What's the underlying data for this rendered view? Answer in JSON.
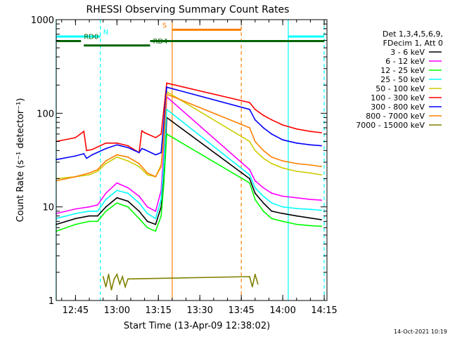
{
  "chart_data": {
    "type": "line",
    "title": "RHESSI Observing Summary Count Rates",
    "xlabel": "Start Time (13-Apr-09 12:38:02)",
    "ylabel": "Count Rate (s⁻¹ detector⁻¹)",
    "yscale": "log",
    "ylim": [
      1,
      1000
    ],
    "xlim": [
      "12:38:02",
      "14:16:00"
    ],
    "x_ticks": [
      "12:45",
      "13:00",
      "13:15",
      "13:30",
      "13:45",
      "14:00",
      "14:15"
    ],
    "y_ticks": [
      "1",
      "10",
      "100",
      "1000"
    ],
    "timestamp": "14-Oct-2021 10:19",
    "legend": {
      "placement": "right",
      "header": [
        "Det 1,3,4,5,6,9,",
        "FDecim 1, Att 0"
      ]
    },
    "series": [
      {
        "name": "3 - 6 keV",
        "color": "#000000",
        "x": [
          "12:38",
          "12:45",
          "12:50",
          "12:53",
          "12:56",
          "13:00",
          "13:04",
          "13:08",
          "13:11",
          "13:14",
          "13:16",
          "13:17",
          "13:18",
          "13:48",
          "13:50",
          "13:53",
          "13:56",
          "14:00",
          "14:05",
          "14:10",
          "14:14"
        ],
        "y": [
          6.5,
          7.5,
          8,
          8,
          10,
          12.5,
          11.5,
          9,
          7,
          6.5,
          10,
          20,
          90,
          20,
          14,
          11,
          9,
          8.5,
          8,
          7.6,
          7.3
        ]
      },
      {
        "name": "6 - 12 keV",
        "color": "#ff00ff",
        "x": [
          "12:38",
          "12:45",
          "12:50",
          "12:53",
          "12:56",
          "13:00",
          "13:04",
          "13:08",
          "13:11",
          "13:14",
          "13:16",
          "13:17",
          "13:18",
          "13:48",
          "13:50",
          "13:53",
          "13:56",
          "14:00",
          "14:05",
          "14:10",
          "14:14"
        ],
        "y": [
          8.5,
          9.5,
          10,
          10.5,
          14,
          18,
          16,
          13,
          10,
          9,
          15,
          40,
          150,
          25,
          19,
          16,
          14,
          13,
          12.5,
          12,
          11.8
        ]
      },
      {
        "name": "12 - 25 keV",
        "color": "#00ff00",
        "x": [
          "12:38",
          "12:45",
          "12:50",
          "12:53",
          "12:56",
          "13:00",
          "13:04",
          "13:08",
          "13:11",
          "13:14",
          "13:16",
          "13:17",
          "13:18",
          "13:48",
          "13:50",
          "13:53",
          "13:56",
          "14:00",
          "14:05",
          "14:10",
          "14:14"
        ],
        "y": [
          5.5,
          6.5,
          7,
          7,
          9,
          11,
          10,
          7.5,
          6,
          5.5,
          8,
          18,
          60,
          18,
          12,
          9,
          7.5,
          7,
          6.5,
          6.3,
          6.2
        ]
      },
      {
        "name": "25 - 50 keV",
        "color": "#00ffff",
        "x": [
          "12:38",
          "12:45",
          "12:50",
          "12:53",
          "12:56",
          "13:00",
          "13:04",
          "13:08",
          "13:11",
          "13:14",
          "13:16",
          "13:17",
          "13:18",
          "13:48",
          "13:50",
          "13:53",
          "13:56",
          "14:00",
          "14:05",
          "14:10",
          "14:14"
        ],
        "y": [
          7.5,
          8.5,
          9,
          9,
          12,
          15,
          14,
          11,
          8.5,
          7.5,
          12,
          30,
          110,
          22,
          16,
          13,
          11,
          10,
          9.6,
          9.4,
          9.2
        ]
      },
      {
        "name": "50 - 100 keV",
        "color": "#cccc00",
        "x": [
          "12:38",
          "12:45",
          "12:50",
          "12:53",
          "12:56",
          "13:00",
          "13:04",
          "13:08",
          "13:11",
          "13:14",
          "13:16",
          "13:17",
          "13:18",
          "13:48",
          "13:50",
          "13:53",
          "13:56",
          "14:00",
          "14:05",
          "14:10",
          "14:14"
        ],
        "y": [
          20,
          21,
          22,
          24,
          29,
          34,
          31,
          27,
          22,
          21,
          28,
          60,
          170,
          50,
          40,
          33,
          29,
          26,
          24,
          23,
          22
        ]
      },
      {
        "name": "100 - 300 keV",
        "color": "#ff0000",
        "x": [
          "12:38",
          "12:45",
          "12:48",
          "12:49",
          "12:51",
          "12:56",
          "13:00",
          "13:04",
          "13:08",
          "13:09",
          "13:10",
          "13:14",
          "13:16",
          "13:17",
          "13:18",
          "13:48",
          "13:50",
          "13:53",
          "13:56",
          "14:00",
          "14:05",
          "14:10",
          "14:14"
        ],
        "y": [
          50,
          55,
          64,
          40,
          41,
          48,
          48,
          45,
          38,
          65,
          62,
          55,
          60,
          110,
          210,
          130,
          110,
          95,
          85,
          75,
          68,
          64,
          62
        ]
      },
      {
        "name": "300 - 800 keV",
        "color": "#0000ff",
        "x": [
          "12:38",
          "12:45",
          "12:48",
          "12:49",
          "12:51",
          "12:56",
          "13:00",
          "13:04",
          "13:08",
          "13:09",
          "13:10",
          "13:14",
          "13:16",
          "13:17",
          "13:18",
          "13:48",
          "13:50",
          "13:53",
          "13:56",
          "14:00",
          "14:05",
          "14:10",
          "14:14"
        ],
        "y": [
          32,
          35,
          37,
          33,
          36,
          42,
          46,
          43,
          38,
          42,
          41,
          36,
          38,
          80,
          190,
          110,
          85,
          70,
          60,
          52,
          48,
          46,
          45
        ]
      },
      {
        "name": "800 - 7000 keV",
        "color": "#ff8000",
        "x": [
          "12:38",
          "12:45",
          "12:50",
          "12:53",
          "12:56",
          "13:00",
          "13:04",
          "13:08",
          "13:11",
          "13:14",
          "13:16",
          "13:17",
          "13:18",
          "13:48",
          "13:50",
          "13:53",
          "13:56",
          "14:00",
          "14:05",
          "14:10",
          "14:14"
        ],
        "y": [
          19,
          21,
          23,
          25,
          31,
          36,
          34,
          29,
          23,
          21,
          27,
          55,
          160,
          70,
          50,
          40,
          34,
          31,
          29,
          28,
          27
        ]
      },
      {
        "name": "7000 - 15000 keV",
        "color": "#808000",
        "x": [
          "12:55",
          "12:56",
          "12:57",
          "12:58",
          "12:59",
          "13:00",
          "13:01",
          "13:02",
          "13:03",
          "13:04",
          "13:48",
          "13:49",
          "13:50",
          "13:51"
        ],
        "y": [
          1.8,
          1.4,
          1.9,
          1.3,
          1.7,
          1.9,
          1.5,
          1.8,
          1.4,
          1.7,
          1.8,
          1.4,
          1.9,
          1.5
        ]
      }
    ],
    "segments": [
      {
        "label": "N",
        "color": "#00ffff",
        "x": [
          [
            "12:38",
            "12:54"
          ],
          [
            "14:02",
            "14:15"
          ]
        ],
        "y": 660
      },
      {
        "label": "RD0",
        "color": "#006400",
        "x": [
          [
            "12:38",
            "12:47"
          ],
          [
            "13:12",
            "14:15"
          ]
        ],
        "y": 590
      },
      {
        "label": "RD4",
        "color": "#006400",
        "x": [
          [
            "12:48",
            "13:12"
          ]
        ],
        "y": 530
      },
      {
        "label": "S",
        "color": "#ff8000",
        "x": [
          [
            "13:20",
            "13:45"
          ]
        ],
        "y": 780
      }
    ],
    "vertical_lines": [
      {
        "x": "12:38",
        "color": "#00ffff",
        "style": "solid"
      },
      {
        "x": "12:54",
        "color": "#00ffff",
        "style": "dashed"
      },
      {
        "x": "13:20",
        "color": "#ff8000",
        "style": "solid"
      },
      {
        "x": "13:45",
        "color": "#ff8000",
        "style": "dashed"
      },
      {
        "x": "14:02",
        "color": "#00ffff",
        "style": "solid"
      },
      {
        "x": "14:15",
        "color": "#00ffff",
        "style": "dashed"
      }
    ]
  }
}
